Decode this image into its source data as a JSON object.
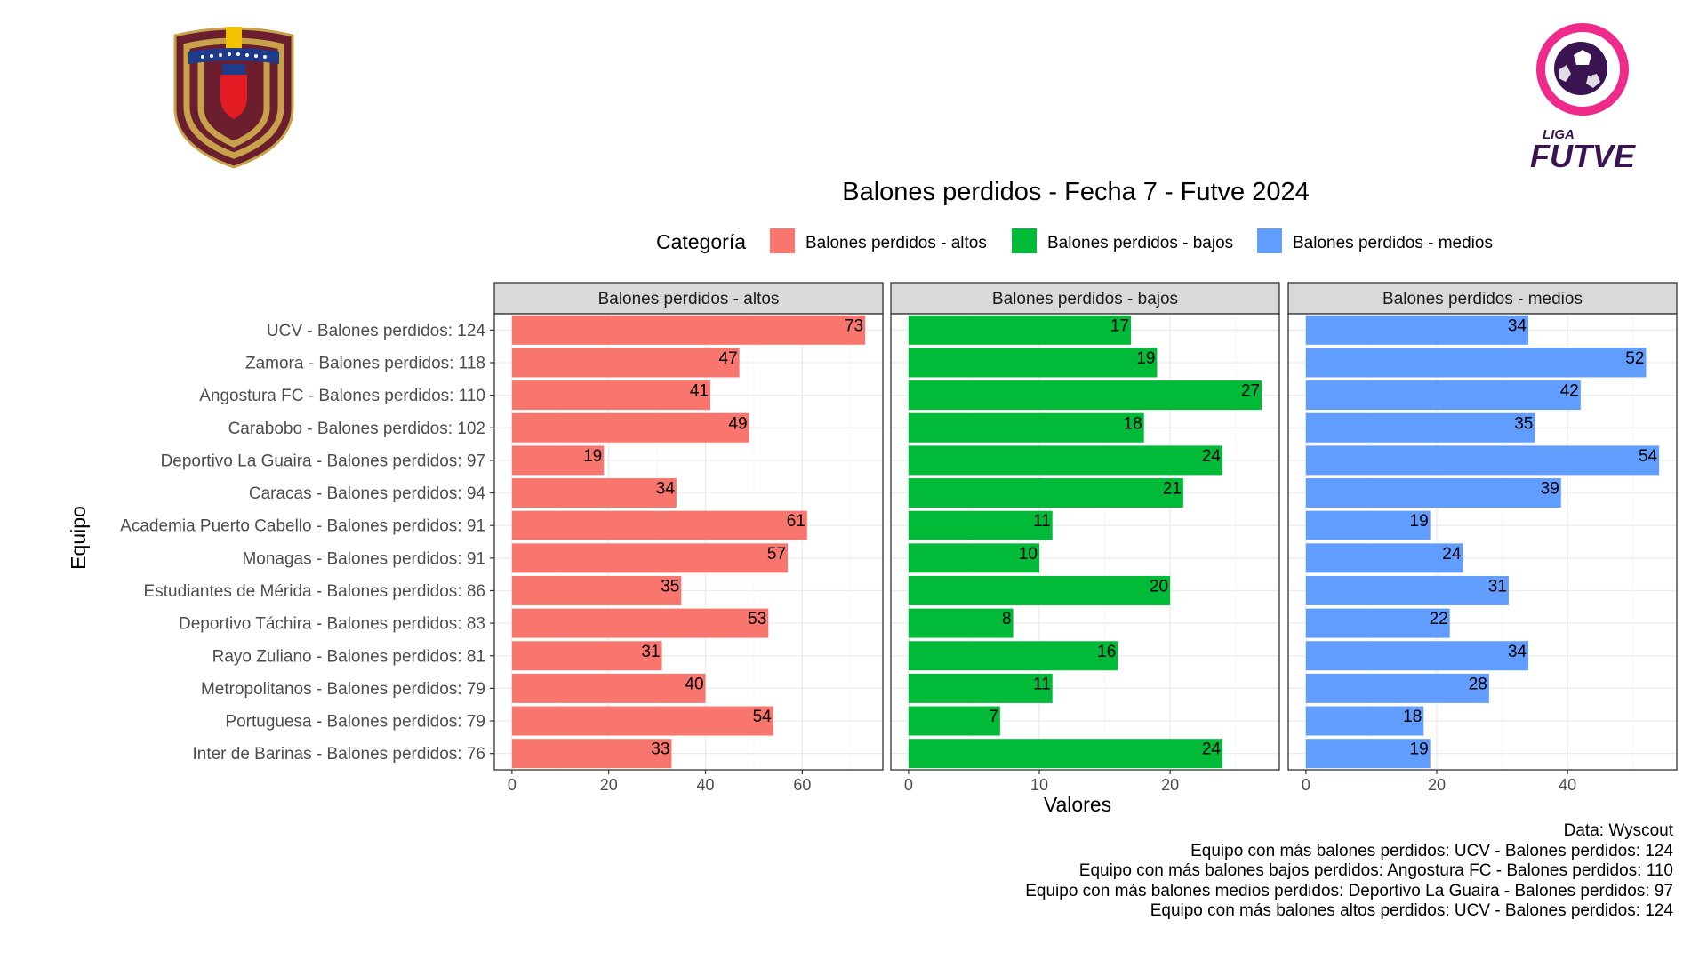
{
  "logos": {
    "left": {
      "name": "Federación Venezolana de Fútbol crest",
      "colors": [
        "#6b1f2e",
        "#c7a24a",
        "#f2c200",
        "#1f3b8c",
        "#e31b23"
      ]
    },
    "right": {
      "text_top": "LIGA",
      "text_main": "FUTVE",
      "colors": [
        "#ee2a8a",
        "#3a1450"
      ]
    }
  },
  "chart_data": {
    "type": "bar",
    "orientation": "horizontal",
    "title": "Balones perdidos - Fecha 7 - Futve 2024",
    "xlabel": "Valores",
    "ylabel": "Equipo",
    "legend": {
      "title": "Categoría",
      "position": "top"
    },
    "grid": true,
    "categories": [
      "UCV - Balones perdidos: 124",
      "Zamora - Balones perdidos: 118",
      "Angostura FC - Balones perdidos: 110",
      "Carabobo - Balones perdidos: 102",
      "Deportivo La Guaira - Balones perdidos: 97",
      "Caracas - Balones perdidos: 94",
      "Academia Puerto Cabello - Balones perdidos: 91",
      "Monagas - Balones perdidos: 91",
      "Estudiantes de Mérida - Balones perdidos: 86",
      "Deportivo Táchira - Balones perdidos: 83",
      "Rayo Zuliano - Balones perdidos: 81",
      "Metropolitanos - Balones perdidos: 79",
      "Portuguesa - Balones perdidos: 79",
      "Inter de Barinas - Balones perdidos: 76"
    ],
    "facets": [
      {
        "name": "Balones perdidos - altos",
        "color": "#f8766d",
        "xlim": [
          -3.65,
          76.65
        ],
        "ticks": [
          0,
          20,
          40,
          60
        ],
        "values": [
          73,
          47,
          41,
          49,
          19,
          34,
          61,
          57,
          35,
          53,
          31,
          40,
          54,
          33
        ]
      },
      {
        "name": "Balones perdidos - bajos",
        "color": "#00ba38",
        "xlim": [
          -1.35,
          28.35
        ],
        "ticks": [
          0,
          10,
          20
        ],
        "values": [
          17,
          19,
          27,
          18,
          24,
          21,
          11,
          10,
          20,
          8,
          16,
          11,
          7,
          24
        ]
      },
      {
        "name": "Balones perdidos - medios",
        "color": "#619cff",
        "xlim": [
          -2.7,
          56.7
        ],
        "ticks": [
          0,
          20,
          40
        ],
        "values": [
          34,
          52,
          42,
          35,
          54,
          39,
          19,
          24,
          31,
          22,
          34,
          28,
          18,
          19
        ]
      }
    ]
  },
  "caption": [
    "Data: Wyscout",
    "Equipo con más balones perdidos: UCV - Balones perdidos: 124",
    "Equipo con más balones bajos perdidos: Angostura FC - Balones perdidos: 110",
    "Equipo con más balones medios perdidos: Deportivo La Guaira - Balones perdidos: 97",
    "Equipo con más balones altos perdidos: UCV - Balones perdidos: 124"
  ]
}
